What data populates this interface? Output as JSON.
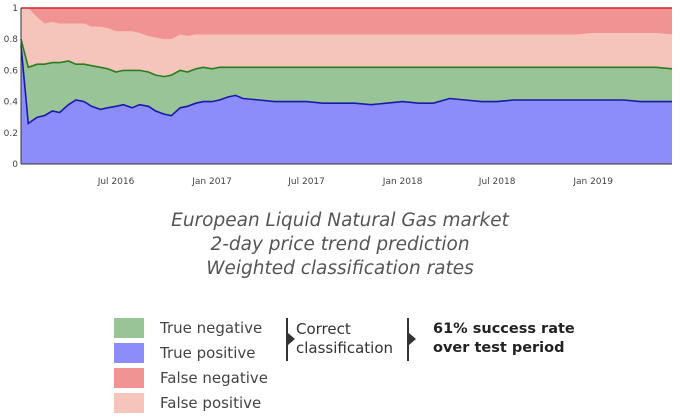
{
  "chart_data": {
    "type": "area",
    "stacked": true,
    "x_dates": [
      "2016-01-01",
      "2016-01-15",
      "2016-02-01",
      "2016-02-15",
      "2016-03-01",
      "2016-03-15",
      "2016-04-01",
      "2016-04-15",
      "2016-05-01",
      "2016-05-15",
      "2016-06-01",
      "2016-06-15",
      "2016-07-01",
      "2016-07-15",
      "2016-08-01",
      "2016-08-15",
      "2016-09-01",
      "2016-09-15",
      "2016-10-01",
      "2016-10-15",
      "2016-11-01",
      "2016-11-15",
      "2016-12-01",
      "2016-12-15",
      "2017-01-01",
      "2017-01-15",
      "2017-02-01",
      "2017-02-15",
      "2017-03-01",
      "2017-04-01",
      "2017-05-01",
      "2017-06-01",
      "2017-07-01",
      "2017-08-01",
      "2017-09-01",
      "2017-10-01",
      "2017-11-01",
      "2017-12-01",
      "2018-01-01",
      "2018-02-01",
      "2018-03-01",
      "2018-04-01",
      "2018-05-01",
      "2018-06-01",
      "2018-07-01",
      "2018-08-01",
      "2018-09-01",
      "2018-10-01",
      "2018-11-01",
      "2018-12-01",
      "2019-01-01",
      "2019-02-01",
      "2019-03-01",
      "2019-04-01",
      "2019-05-01",
      "2019-06-01"
    ],
    "series": [
      {
        "name": "True positive",
        "color": "#8c8cfb",
        "values": [
          0.76,
          0.26,
          0.3,
          0.31,
          0.34,
          0.33,
          0.38,
          0.41,
          0.4,
          0.37,
          0.35,
          0.36,
          0.37,
          0.38,
          0.36,
          0.38,
          0.37,
          0.34,
          0.32,
          0.31,
          0.36,
          0.37,
          0.39,
          0.4,
          0.4,
          0.41,
          0.43,
          0.44,
          0.42,
          0.41,
          0.4,
          0.4,
          0.4,
          0.39,
          0.39,
          0.39,
          0.38,
          0.39,
          0.4,
          0.39,
          0.39,
          0.42,
          0.41,
          0.4,
          0.4,
          0.41,
          0.41,
          0.41,
          0.41,
          0.41,
          0.41,
          0.41,
          0.41,
          0.4,
          0.4,
          0.4
        ]
      },
      {
        "name": "True negative",
        "color": "#99c497",
        "values": [
          0.04,
          0.36,
          0.34,
          0.33,
          0.31,
          0.32,
          0.28,
          0.23,
          0.24,
          0.26,
          0.27,
          0.25,
          0.22,
          0.22,
          0.24,
          0.22,
          0.22,
          0.23,
          0.24,
          0.26,
          0.24,
          0.22,
          0.22,
          0.22,
          0.21,
          0.21,
          0.19,
          0.18,
          0.2,
          0.21,
          0.22,
          0.22,
          0.22,
          0.23,
          0.23,
          0.23,
          0.24,
          0.23,
          0.22,
          0.23,
          0.23,
          0.2,
          0.21,
          0.22,
          0.22,
          0.21,
          0.21,
          0.21,
          0.21,
          0.21,
          0.21,
          0.21,
          0.21,
          0.22,
          0.22,
          0.21
        ]
      },
      {
        "name": "False positive",
        "color": "#f5c5bc",
        "values": [
          0.2,
          0.38,
          0.3,
          0.26,
          0.26,
          0.25,
          0.24,
          0.26,
          0.26,
          0.25,
          0.26,
          0.26,
          0.26,
          0.25,
          0.25,
          0.24,
          0.23,
          0.24,
          0.24,
          0.23,
          0.23,
          0.23,
          0.22,
          0.21,
          0.22,
          0.21,
          0.21,
          0.21,
          0.21,
          0.21,
          0.21,
          0.21,
          0.21,
          0.21,
          0.21,
          0.21,
          0.21,
          0.21,
          0.21,
          0.21,
          0.21,
          0.21,
          0.21,
          0.21,
          0.21,
          0.21,
          0.21,
          0.21,
          0.21,
          0.21,
          0.22,
          0.22,
          0.22,
          0.22,
          0.22,
          0.22
        ]
      },
      {
        "name": "False negative",
        "color": "#f29393",
        "values": [
          0.0,
          0.0,
          0.06,
          0.1,
          0.09,
          0.1,
          0.1,
          0.1,
          0.1,
          0.12,
          0.12,
          0.13,
          0.15,
          0.15,
          0.15,
          0.16,
          0.18,
          0.19,
          0.2,
          0.2,
          0.17,
          0.18,
          0.17,
          0.17,
          0.17,
          0.17,
          0.17,
          0.17,
          0.17,
          0.17,
          0.17,
          0.17,
          0.17,
          0.17,
          0.17,
          0.17,
          0.17,
          0.17,
          0.17,
          0.17,
          0.17,
          0.17,
          0.17,
          0.17,
          0.17,
          0.17,
          0.17,
          0.17,
          0.17,
          0.17,
          0.16,
          0.16,
          0.16,
          0.16,
          0.16,
          0.17
        ]
      }
    ],
    "x_ticks": [
      {
        "date": "2016-07-01",
        "label": "Jul 2016"
      },
      {
        "date": "2017-01-01",
        "label": "Jan 2017"
      },
      {
        "date": "2017-07-01",
        "label": "Jul 2017"
      },
      {
        "date": "2018-01-01",
        "label": "Jan 2018"
      },
      {
        "date": "2018-07-01",
        "label": "Jul 2018"
      },
      {
        "date": "2019-01-01",
        "label": "Jan 2019"
      }
    ],
    "y_ticks": [
      {
        "value": 0,
        "label": "0"
      },
      {
        "value": 0.2,
        "label": "0.2"
      },
      {
        "value": 0.4,
        "label": "0.4"
      },
      {
        "value": 0.6,
        "label": "0.6"
      },
      {
        "value": 0.8,
        "label": "0.8"
      },
      {
        "value": 1,
        "label": "1"
      }
    ],
    "ylim": [
      0,
      1
    ],
    "xlim": [
      "2016-01-01",
      "2019-06-01"
    ],
    "grid": false,
    "line_colors": {
      "true_positive_line": "#1a1aa8",
      "true_negative_line": "#2d7a20",
      "false_negative_line": "#cc2a2a"
    }
  },
  "caption": {
    "line1": "European Liquid Natural Gas market",
    "line2": "2-day price trend prediction",
    "line3": "Weighted classification rates"
  },
  "legend": {
    "items": [
      {
        "label": "True negative",
        "color": "#99c497"
      },
      {
        "label": "True positive",
        "color": "#8c8cfb"
      },
      {
        "label": "False negative",
        "color": "#f29393"
      },
      {
        "label": "False positive",
        "color": "#f5c5bc"
      }
    ],
    "group_line1": "Correct",
    "group_line2": "classification",
    "result_line1": "61% success rate",
    "result_line2": "over test period"
  }
}
